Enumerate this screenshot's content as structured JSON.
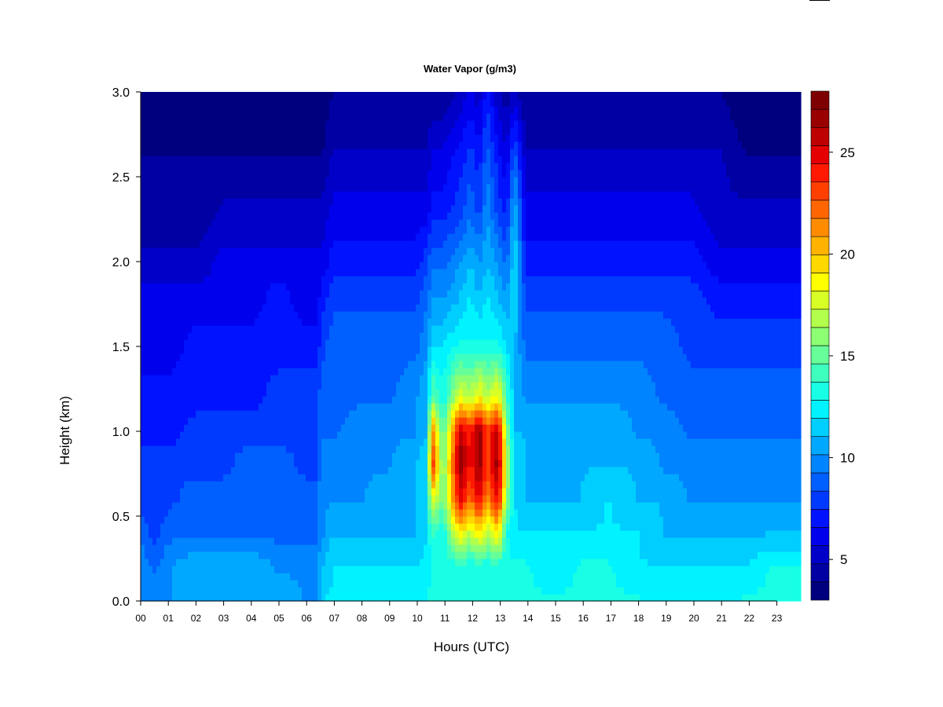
{
  "chart_data": {
    "type": "heatmap",
    "title": "Water Vapor (g/m3)",
    "xlabel": "Hours (UTC)",
    "ylabel": "Height (km)",
    "x_tick_labels": [
      "00",
      "01",
      "02",
      "03",
      "04",
      "05",
      "06",
      "07",
      "08",
      "09",
      "10",
      "11",
      "12",
      "13",
      "14",
      "15",
      "16",
      "17",
      "18",
      "19",
      "20",
      "21",
      "22",
      "23"
    ],
    "xlim": [
      0,
      24
    ],
    "y_ticks": [
      0.0,
      0.5,
      1.0,
      1.5,
      2.0,
      2.5,
      3.0
    ],
    "y_tick_labels": [
      "0.0",
      "0.5",
      "1.0",
      "1.5",
      "2.0",
      "2.5",
      "3.0"
    ],
    "ylim": [
      0.0,
      3.0
    ],
    "colorbar": {
      "range": [
        3,
        28
      ],
      "levels": 25,
      "ticks": [
        5,
        10,
        15,
        20,
        25
      ],
      "tick_labels": [
        "5",
        "10",
        "15",
        "20",
        "25"
      ],
      "colors": [
        "#00007f",
        "#0000a3",
        "#0000c8",
        "#0000ed",
        "#0012ff",
        "#0039ff",
        "#005fff",
        "#0084ff",
        "#00a9ff",
        "#00ceff",
        "#00f3ff",
        "#19ffe5",
        "#3fffbf",
        "#66ff99",
        "#8cff72",
        "#b2ff4c",
        "#d8ff26",
        "#ffff00",
        "#ffd800",
        "#ffb200",
        "#ff8c00",
        "#ff6600",
        "#ff3f00",
        "#ff1900",
        "#e50000",
        "#bf0000",
        "#990000",
        "#7f0000"
      ]
    },
    "profiles_by_hour": {
      "hours": [
        0,
        0.5,
        1,
        2,
        3,
        4,
        5,
        6,
        6.4,
        6.6,
        7,
        8,
        9,
        10,
        10.4,
        10.6,
        11,
        11.6,
        12,
        12.3,
        12.6,
        13,
        13.3,
        13.6,
        14,
        15,
        16,
        17,
        18,
        19,
        20,
        21,
        22,
        23,
        24
      ],
      "heights_km": [
        0.0,
        0.2,
        0.4,
        0.6,
        0.8,
        1.0,
        1.2,
        1.5,
        1.8,
        2.0,
        2.3,
        2.6,
        3.0
      ],
      "values": [
        [
          10,
          10,
          9,
          8,
          8,
          7,
          7,
          6,
          6,
          5,
          4,
          4,
          3
        ],
        [
          10,
          9,
          8,
          8,
          8,
          7,
          7,
          6,
          6,
          5,
          4,
          4,
          3
        ],
        [
          10,
          10,
          9,
          8,
          8,
          7,
          7,
          6,
          6,
          5,
          4,
          4,
          3
        ],
        [
          11,
          11,
          9,
          9,
          8,
          8,
          7,
          7,
          6,
          5,
          4,
          4,
          3
        ],
        [
          11,
          11,
          9,
          9,
          8,
          8,
          7,
          7,
          6,
          6,
          5,
          4,
          3
        ],
        [
          11,
          11,
          9,
          9,
          9,
          8,
          7,
          7,
          6,
          6,
          5,
          4,
          3
        ],
        [
          11,
          10,
          9,
          9,
          9,
          8,
          8,
          7,
          7,
          6,
          5,
          4,
          3
        ],
        [
          10,
          10,
          9,
          9,
          8,
          8,
          8,
          7,
          6,
          6,
          5,
          4,
          3
        ],
        [
          10,
          10,
          9,
          9,
          8,
          8,
          8,
          7,
          6,
          6,
          5,
          4,
          3
        ],
        [
          12,
          11,
          10,
          10,
          10,
          9,
          9,
          8,
          7,
          6,
          5,
          4,
          3
        ],
        [
          12,
          12,
          11,
          10,
          10,
          9,
          9,
          9,
          8,
          7,
          6,
          5,
          4
        ],
        [
          12,
          12,
          11,
          10,
          10,
          10,
          9,
          9,
          8,
          7,
          6,
          5,
          4
        ],
        [
          12,
          12,
          11,
          11,
          10,
          10,
          9,
          9,
          8,
          7,
          6,
          5,
          4
        ],
        [
          12,
          12,
          11,
          11,
          11,
          10,
          10,
          9,
          8,
          7,
          6,
          5,
          4
        ],
        [
          13,
          12,
          12,
          12,
          12,
          11,
          11,
          10,
          9,
          8,
          6,
          5,
          4
        ],
        [
          13,
          13,
          14,
          18,
          24,
          22,
          15,
          12,
          10,
          9,
          7,
          6,
          4
        ],
        [
          13,
          13,
          13,
          15,
          15,
          14,
          13,
          12,
          10,
          9,
          7,
          6,
          4
        ],
        [
          13,
          13,
          19,
          25,
          27,
          26,
          18,
          13,
          11,
          10,
          8,
          7,
          5
        ],
        [
          13,
          13,
          17,
          22,
          24,
          24,
          17,
          13,
          12,
          11,
          9,
          8,
          6
        ],
        [
          13,
          13,
          19,
          25,
          27,
          27,
          19,
          13,
          11,
          10,
          8,
          7,
          5
        ],
        [
          13,
          13,
          17,
          21,
          23,
          23,
          17,
          13,
          12,
          11,
          10,
          9,
          7
        ],
        [
          13,
          13,
          19,
          25,
          27,
          26,
          19,
          13,
          11,
          10,
          8,
          7,
          5
        ],
        [
          13,
          13,
          13,
          16,
          17,
          16,
          14,
          12,
          10,
          9,
          7,
          6,
          4
        ],
        [
          13,
          13,
          12,
          12,
          12,
          11,
          11,
          11,
          12,
          12,
          11,
          9,
          5
        ],
        [
          13,
          13,
          12,
          11,
          11,
          11,
          10,
          9,
          8,
          7,
          6,
          5,
          4
        ],
        [
          13,
          12,
          12,
          11,
          11,
          11,
          10,
          9,
          8,
          7,
          6,
          5,
          4
        ],
        [
          13,
          13,
          12,
          11,
          11,
          11,
          10,
          9,
          8,
          7,
          6,
          5,
          4
        ],
        [
          13,
          13,
          12,
          12,
          11,
          11,
          10,
          9,
          8,
          7,
          6,
          5,
          4
        ],
        [
          13,
          12,
          12,
          11,
          11,
          10,
          10,
          9,
          8,
          7,
          6,
          5,
          4
        ],
        [
          12,
          12,
          11,
          11,
          10,
          10,
          9,
          9,
          8,
          7,
          6,
          5,
          4
        ],
        [
          12,
          12,
          11,
          10,
          10,
          9,
          9,
          8,
          8,
          7,
          6,
          5,
          4
        ],
        [
          12,
          12,
          11,
          10,
          10,
          9,
          9,
          8,
          7,
          6,
          5,
          5,
          4
        ],
        [
          13,
          12,
          11,
          10,
          10,
          9,
          9,
          8,
          7,
          6,
          5,
          4,
          3
        ],
        [
          13,
          13,
          11,
          10,
          10,
          9,
          9,
          8,
          7,
          6,
          5,
          4,
          3
        ],
        [
          13,
          13,
          11,
          10,
          10,
          9,
          9,
          8,
          7,
          6,
          5,
          4,
          3
        ]
      ]
    },
    "grid": false,
    "legend": "colorbar-right"
  }
}
